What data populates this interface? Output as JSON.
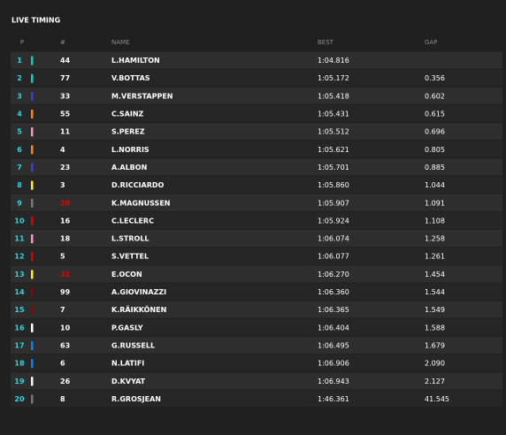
{
  "header": {
    "title": "LIVE TIMING"
  },
  "table": {
    "columns": [
      "P",
      "#",
      "NAME",
      "BEST",
      "GAP"
    ],
    "rows": [
      {
        "pos": "1",
        "number": "44",
        "name": "L.HAMILTON",
        "best": "1:04.816",
        "gap": null,
        "color": "#00d2be"
      },
      {
        "pos": "2",
        "number": "77",
        "name": "V.BOTTAS",
        "best": "1:05.172",
        "gap": "0.356",
        "color": "#00d2be"
      },
      {
        "pos": "3",
        "number": "33",
        "name": "M.VERSTAPPEN",
        "best": "1:05.418",
        "gap": "0.602",
        "color": "#3b3bd8"
      },
      {
        "pos": "4",
        "number": "55",
        "name": "C.SAINZ",
        "best": "1:05.431",
        "gap": "0.615",
        "color": "#ff8700"
      },
      {
        "pos": "5",
        "number": "11",
        "name": "S.PEREZ",
        "best": "1:05.512",
        "gap": "0.696",
        "color": "#f596c8"
      },
      {
        "pos": "6",
        "number": "4",
        "name": "L.NORRIS",
        "best": "1:05.621",
        "gap": "0.805",
        "color": "#ff8700"
      },
      {
        "pos": "7",
        "number": "23",
        "name": "A.ALBON",
        "best": "1:05.701",
        "gap": "0.885",
        "color": "#3b3bd8"
      },
      {
        "pos": "8",
        "number": "3",
        "name": "D.RICCIARDO",
        "best": "1:05.860",
        "gap": "1.044",
        "color": "#fff500"
      },
      {
        "pos": "9",
        "number": "20",
        "name": "K.MAGNUSSEN",
        "best": "1:05.907",
        "gap": "1.091",
        "color": "#787878",
        "number_color": "#e10600"
      },
      {
        "pos": "10",
        "number": "16",
        "name": "C.LECLERC",
        "best": "1:05.924",
        "gap": "1.108",
        "color": "#dc0000"
      },
      {
        "pos": "11",
        "number": "18",
        "name": "L.STROLL",
        "best": "1:06.074",
        "gap": "1.258",
        "color": "#f596c8"
      },
      {
        "pos": "12",
        "number": "5",
        "name": "S.VETTEL",
        "best": "1:06.077",
        "gap": "1.261",
        "color": "#dc0000"
      },
      {
        "pos": "13",
        "number": "31",
        "name": "E.OCON",
        "best": "1:06.270",
        "gap": "1.454",
        "color": "#fff500",
        "number_color": "#e10600"
      },
      {
        "pos": "14",
        "number": "99",
        "name": "A.GIOVINAZZI",
        "best": "1:06.360",
        "gap": "1.544",
        "color": "#960000"
      },
      {
        "pos": "15",
        "number": "7",
        "name": "K.RÄIKKÖNEN",
        "best": "1:06.365",
        "gap": "1.549",
        "color": "#960000"
      },
      {
        "pos": "16",
        "number": "10",
        "name": "P.GASLY",
        "best": "1:06.404",
        "gap": "1.588",
        "color": "#ffffff"
      },
      {
        "pos": "17",
        "number": "63",
        "name": "G.RUSSELL",
        "best": "1:06.495",
        "gap": "1.679",
        "color": "#0082fa"
      },
      {
        "pos": "18",
        "number": "6",
        "name": "N.LATIFI",
        "best": "1:06.906",
        "gap": "2.090",
        "color": "#0082fa"
      },
      {
        "pos": "19",
        "number": "26",
        "name": "D.KVYAT",
        "best": "1:06.943",
        "gap": "2.127",
        "color": "#ffffff"
      },
      {
        "pos": "20",
        "number": "8",
        "name": "R.GROSJEAN",
        "best": "1:46.361",
        "gap": "41.545",
        "color": "#787878"
      }
    ]
  }
}
